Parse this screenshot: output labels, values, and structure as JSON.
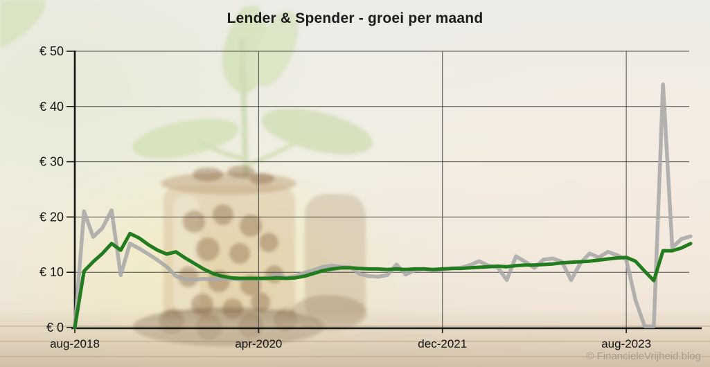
{
  "page": {
    "title": "Lender & Spender - groei per maand",
    "watermark": "© FinancieleVrijheid.blog"
  },
  "chart_data": {
    "type": "line",
    "title": "Lender & Spender - groei per maand",
    "xlabel": "",
    "ylabel": "",
    "currency": "EUR",
    "x_unit": "month",
    "x_start": "aug-2018",
    "x_end": "mrt-2024",
    "x_tick_labels": [
      "aug-2018",
      "apr-2020",
      "dec-2021",
      "aug-2023"
    ],
    "x_tick_indices": [
      0,
      20,
      40,
      60
    ],
    "y_ticks": [
      0,
      10,
      20,
      30,
      40,
      50
    ],
    "y_tick_labels": [
      "€ 0",
      "€ 10",
      "€ 20",
      "€ 30",
      "€ 40",
      "€ 50"
    ],
    "ylim": [
      0,
      50
    ],
    "grid": true,
    "legend_position": "none",
    "series": [
      {
        "name": "monthly-growth-gray",
        "color": "#a8a8a8",
        "values": [
          0,
          21,
          16.4,
          18,
          21.2,
          9.5,
          15.2,
          14.3,
          13.3,
          12.2,
          11.0,
          9.3,
          8.7,
          8.7,
          8.8,
          8.7,
          8.9,
          8.8,
          8.7,
          8.9,
          8.8,
          9.0,
          9.6,
          9.0,
          9.3,
          9.9,
          10.4,
          11.0,
          11.2,
          11.0,
          10.9,
          9.7,
          9.3,
          9.2,
          9.5,
          11.4,
          9.6,
          10.4,
          10.6,
          10.4,
          10.5,
          10.7,
          10.8,
          11.3,
          12.0,
          11.2,
          10.9,
          8.6,
          12.9,
          11.9,
          10.8,
          12.3,
          12.5,
          11.9,
          8.6,
          11.6,
          13.4,
          12.7,
          13.7,
          13.1,
          12.3,
          5.0,
          0.2,
          0.2,
          44.0,
          14.5,
          16.0,
          16.5
        ]
      },
      {
        "name": "average-growth-green",
        "color": "#217c1d",
        "values": [
          0,
          10.2,
          11.9,
          13.4,
          15.2,
          14.0,
          17.0,
          16.2,
          15.0,
          14.0,
          13.3,
          13.7,
          12.6,
          11.6,
          10.6,
          9.8,
          9.3,
          9.0,
          8.9,
          8.9,
          8.9,
          8.9,
          9.0,
          8.9,
          9.0,
          9.3,
          9.8,
          10.3,
          10.6,
          10.8,
          10.8,
          10.7,
          10.6,
          10.6,
          10.5,
          10.6,
          10.5,
          10.6,
          10.6,
          10.5,
          10.6,
          10.7,
          10.7,
          10.8,
          10.9,
          11.0,
          11.1,
          11.0,
          11.2,
          11.3,
          11.3,
          11.4,
          11.5,
          11.7,
          11.8,
          11.9,
          12.0,
          12.2,
          12.4,
          12.6,
          12.7,
          12.0,
          10.2,
          8.5,
          13.9,
          13.9,
          14.4,
          15.2
        ]
      }
    ]
  }
}
